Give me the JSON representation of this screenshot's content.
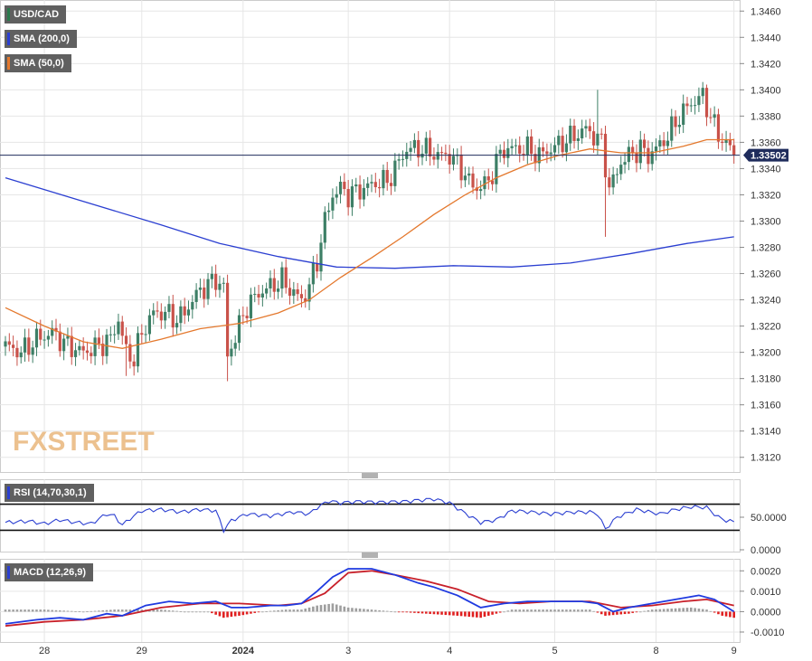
{
  "colors": {
    "background": "#ffffff",
    "grid": "#e6e6e6",
    "axis_text": "#333333",
    "border": "#444444",
    "bull": "#3d7f66",
    "bear": "#c9524a",
    "sma200": "#2b3fd1",
    "sma50": "#e4782d",
    "price_line": "#1f2c5c",
    "price_tag": "#1f2c5c",
    "rsi": "#2b3fd1",
    "macd": "#1f3ae0",
    "signal": "#c8202a",
    "hist_pos": "#9e9e9e",
    "hist_neg": "#e02020",
    "legend_bg": "#606060",
    "watermark": "#e9b77c"
  },
  "watermark": {
    "text": "FXSTREET",
    "prefix": "FX",
    "suffix": "STREET"
  },
  "price_tag": "1.33502",
  "legends": {
    "price": [
      {
        "label": "USD/CAD",
        "swatch": "#2a7a4d"
      },
      {
        "label": "SMA (200,0)",
        "swatch": "#2b3fd1"
      },
      {
        "label": "SMA (50,0)",
        "swatch": "#e4782d"
      }
    ],
    "rsi": {
      "label": "RSI (14,70,30,1)",
      "swatch": "#2b3fd1"
    },
    "macd": {
      "label": "MACD (12,26,9)",
      "swatch": "#2b3fd1"
    }
  },
  "x_axis_labels": [
    "28",
    "29",
    "2024",
    "3",
    "4",
    "5",
    "8",
    "9"
  ],
  "chart_data": [
    {
      "type": "candlestick",
      "title": "USD/CAD",
      "ylim": [
        1.3115,
        1.3465
      ],
      "yticks": [
        "1.3460",
        "1.3440",
        "1.3420",
        "1.3400",
        "1.3380",
        "1.3360",
        "1.3340",
        "1.3320",
        "1.3300",
        "1.3280",
        "1.3260",
        "1.3240",
        "1.3220",
        "1.3200",
        "1.3180",
        "1.3160",
        "1.3140",
        "1.3120"
      ],
      "x_labels": [
        "28",
        "29",
        "2024",
        "3",
        "4",
        "5",
        "8",
        "9"
      ],
      "last_price": 1.33502,
      "anchors": [
        [
          0,
          1.3205
        ],
        [
          4,
          1.32
        ],
        [
          8,
          1.321
        ],
        [
          12,
          1.3215
        ],
        [
          16,
          1.3205
        ],
        [
          20,
          1.32
        ],
        [
          24,
          1.3205
        ],
        [
          27,
          1.321
        ],
        [
          29,
          1.3225
        ],
        [
          31,
          1.32
        ],
        [
          33,
          1.3195
        ],
        [
          35,
          1.3215
        ],
        [
          38,
          1.323
        ],
        [
          41,
          1.323
        ],
        [
          44,
          1.3225
        ],
        [
          46,
          1.323
        ],
        [
          48,
          1.324
        ],
        [
          51,
          1.325
        ],
        [
          54,
          1.3255
        ],
        [
          56,
          1.325
        ],
        [
          57,
          1.3195
        ],
        [
          58,
          1.3205
        ],
        [
          60,
          1.322
        ],
        [
          62,
          1.3235
        ],
        [
          65,
          1.3245
        ],
        [
          68,
          1.325
        ],
        [
          71,
          1.3255
        ],
        [
          74,
          1.3245
        ],
        [
          76,
          1.324
        ],
        [
          78,
          1.325
        ],
        [
          80,
          1.327
        ],
        [
          82,
          1.33
        ],
        [
          84,
          1.332
        ],
        [
          86,
          1.3325
        ],
        [
          88,
          1.332
        ],
        [
          92,
          1.3325
        ],
        [
          96,
          1.333
        ],
        [
          98,
          1.333
        ],
        [
          100,
          1.334
        ],
        [
          103,
          1.3355
        ],
        [
          107,
          1.3355
        ],
        [
          111,
          1.335
        ],
        [
          114,
          1.335
        ],
        [
          117,
          1.334
        ],
        [
          119,
          1.333
        ],
        [
          121,
          1.3325
        ],
        [
          124,
          1.333
        ],
        [
          126,
          1.3345
        ],
        [
          128,
          1.3355
        ],
        [
          131,
          1.3355
        ],
        [
          134,
          1.3355
        ],
        [
          137,
          1.335
        ],
        [
          140,
          1.3355
        ],
        [
          143,
          1.336
        ],
        [
          146,
          1.3365
        ],
        [
          149,
          1.337
        ],
        [
          151,
          1.3365
        ],
        [
          153,
          1.336
        ],
        [
          155,
          1.3325
        ],
        [
          156,
          1.333
        ],
        [
          158,
          1.3345
        ],
        [
          160,
          1.335
        ],
        [
          163,
          1.3355
        ],
        [
          165,
          1.335
        ],
        [
          167,
          1.3355
        ],
        [
          170,
          1.3365
        ],
        [
          173,
          1.338
        ],
        [
          176,
          1.339
        ],
        [
          179,
          1.3395
        ],
        [
          181,
          1.338
        ],
        [
          183,
          1.3365
        ],
        [
          185,
          1.336
        ],
        [
          187,
          1.335
        ]
      ],
      "spikes": [
        {
          "index": 57,
          "low": 1.3178
        },
        {
          "index": 31,
          "low": 1.3182
        },
        {
          "index": 154,
          "low": 1.3288
        },
        {
          "index": 152,
          "high": 1.34
        },
        {
          "index": 180,
          "high": 1.3404
        }
      ],
      "series": [
        {
          "name": "SMA (200,0)",
          "points": [
            [
              0,
              1.3333
            ],
            [
              20,
              1.3315
            ],
            [
              40,
              1.3297
            ],
            [
              55,
              1.3283
            ],
            [
              70,
              1.3273
            ],
            [
              85,
              1.3265
            ],
            [
              100,
              1.3264
            ],
            [
              115,
              1.3266
            ],
            [
              130,
              1.3265
            ],
            [
              145,
              1.3268
            ],
            [
              160,
              1.3275
            ],
            [
              175,
              1.3283
            ],
            [
              187,
              1.3288
            ]
          ]
        },
        {
          "name": "SMA (50,0)",
          "points": [
            [
              0,
              1.3234
            ],
            [
              10,
              1.322
            ],
            [
              20,
              1.3208
            ],
            [
              30,
              1.3203
            ],
            [
              40,
              1.321
            ],
            [
              50,
              1.3218
            ],
            [
              60,
              1.3222
            ],
            [
              70,
              1.323
            ],
            [
              78,
              1.324
            ],
            [
              86,
              1.3257
            ],
            [
              94,
              1.3272
            ],
            [
              102,
              1.3288
            ],
            [
              110,
              1.3305
            ],
            [
              118,
              1.332
            ],
            [
              126,
              1.3333
            ],
            [
              134,
              1.3343
            ],
            [
              142,
              1.335
            ],
            [
              150,
              1.3355
            ],
            [
              158,
              1.3352
            ],
            [
              166,
              1.3352
            ],
            [
              174,
              1.3357
            ],
            [
              180,
              1.3362
            ],
            [
              187,
              1.3362
            ]
          ]
        }
      ]
    },
    {
      "type": "line",
      "title": "RSI (14,70,30,1)",
      "ylim": [
        0,
        100
      ],
      "yticks": [
        "50.0000",
        "0.0000"
      ],
      "levels": [
        70,
        30
      ],
      "series": [
        {
          "name": "RSI (14,70,30,1)",
          "points": [
            [
              0,
              42
            ],
            [
              6,
              44
            ],
            [
              10,
              40
            ],
            [
              14,
              46
            ],
            [
              18,
              42
            ],
            [
              22,
              40
            ],
            [
              26,
              55
            ],
            [
              28,
              52
            ],
            [
              30,
              38
            ],
            [
              32,
              48
            ],
            [
              35,
              60
            ],
            [
              40,
              62
            ],
            [
              45,
              58
            ],
            [
              50,
              62
            ],
            [
              54,
              60
            ],
            [
              56,
              30
            ],
            [
              58,
              45
            ],
            [
              62,
              55
            ],
            [
              68,
              52
            ],
            [
              74,
              58
            ],
            [
              78,
              55
            ],
            [
              80,
              65
            ],
            [
              83,
              75
            ],
            [
              86,
              72
            ],
            [
              90,
              74
            ],
            [
              96,
              73
            ],
            [
              102,
              74
            ],
            [
              106,
              76
            ],
            [
              110,
              78
            ],
            [
              114,
              72
            ],
            [
              118,
              56
            ],
            [
              122,
              42
            ],
            [
              126,
              46
            ],
            [
              130,
              60
            ],
            [
              135,
              58
            ],
            [
              140,
              55
            ],
            [
              146,
              58
            ],
            [
              150,
              58
            ],
            [
              152,
              55
            ],
            [
              154,
              32
            ],
            [
              157,
              50
            ],
            [
              162,
              62
            ],
            [
              168,
              55
            ],
            [
              172,
              62
            ],
            [
              176,
              66
            ],
            [
              180,
              65
            ],
            [
              183,
              50
            ],
            [
              185,
              45
            ],
            [
              187,
              43
            ]
          ]
        }
      ]
    },
    {
      "type": "line",
      "title": "MACD (12,26,9)",
      "ylim": [
        -0.0014,
        0.0025
      ],
      "yticks": [
        "0.0020",
        "0.0010",
        "0.0000",
        "-0.0010"
      ],
      "series": [
        {
          "name": "MACD",
          "points": [
            [
              0,
              -0.0006
            ],
            [
              8,
              -0.0004
            ],
            [
              14,
              -0.0003
            ],
            [
              20,
              -0.0004
            ],
            [
              26,
              -0.0001
            ],
            [
              30,
              -0.0002
            ],
            [
              36,
              0.0003
            ],
            [
              42,
              0.0005
            ],
            [
              48,
              0.0004
            ],
            [
              54,
              0.0005
            ],
            [
              58,
              0.0002
            ],
            [
              62,
              0.0002
            ],
            [
              68,
              0.0003
            ],
            [
              72,
              0.0003
            ],
            [
              76,
              0.0004
            ],
            [
              80,
              0.001
            ],
            [
              84,
              0.0017
            ],
            [
              88,
              0.0021
            ],
            [
              94,
              0.0021
            ],
            [
              100,
              0.0018
            ],
            [
              106,
              0.0014
            ],
            [
              110,
              0.0012
            ],
            [
              116,
              0.0008
            ],
            [
              122,
              0.0002
            ],
            [
              128,
              0.0004
            ],
            [
              134,
              0.0005
            ],
            [
              140,
              0.0005
            ],
            [
              148,
              0.0005
            ],
            [
              152,
              0.0004
            ],
            [
              156,
              0.0
            ],
            [
              160,
              0.0002
            ],
            [
              166,
              0.0004
            ],
            [
              172,
              0.0006
            ],
            [
              178,
              0.0008
            ],
            [
              182,
              0.0006
            ],
            [
              187,
              0.0
            ]
          ]
        },
        {
          "name": "Signal",
          "points": [
            [
              0,
              -0.0007
            ],
            [
              10,
              -0.0005
            ],
            [
              20,
              -0.0004
            ],
            [
              30,
              -0.0002
            ],
            [
              40,
              0.0002
            ],
            [
              50,
              0.0004
            ],
            [
              60,
              0.0004
            ],
            [
              70,
              0.0003
            ],
            [
              76,
              0.0004
            ],
            [
              82,
              0.0009
            ],
            [
              88,
              0.0019
            ],
            [
              94,
              0.002
            ],
            [
              100,
              0.0018
            ],
            [
              108,
              0.0015
            ],
            [
              116,
              0.0011
            ],
            [
              124,
              0.0005
            ],
            [
              132,
              0.0004
            ],
            [
              140,
              0.0005
            ],
            [
              150,
              0.0005
            ],
            [
              158,
              0.0002
            ],
            [
              166,
              0.0003
            ],
            [
              174,
              0.0005
            ],
            [
              180,
              0.0006
            ],
            [
              187,
              0.0003
            ]
          ]
        }
      ],
      "histogram": [
        [
          0,
          0.0001
        ],
        [
          10,
          0.0001
        ],
        [
          20,
          0.0
        ],
        [
          28,
          0.0001
        ],
        [
          34,
          0.0001
        ],
        [
          40,
          0.0001
        ],
        [
          46,
          0.0
        ],
        [
          52,
          0.0
        ],
        [
          56,
          -0.0003
        ],
        [
          60,
          -0.0002
        ],
        [
          66,
          0.0
        ],
        [
          72,
          0.0001
        ],
        [
          76,
          0.0001
        ],
        [
          80,
          0.0003
        ],
        [
          84,
          0.0004
        ],
        [
          88,
          0.0002
        ],
        [
          94,
          0.0001
        ],
        [
          100,
          0.0
        ],
        [
          108,
          -0.0001
        ],
        [
          116,
          -0.0002
        ],
        [
          122,
          -0.0003
        ],
        [
          126,
          -0.0001
        ],
        [
          130,
          0.0001
        ],
        [
          140,
          0.0001
        ],
        [
          150,
          0.0001
        ],
        [
          154,
          -0.0002
        ],
        [
          160,
          -0.0001
        ],
        [
          166,
          0.0001
        ],
        [
          176,
          0.0002
        ],
        [
          180,
          0.0001
        ],
        [
          184,
          -0.0002
        ],
        [
          187,
          -0.0003
        ]
      ]
    }
  ]
}
